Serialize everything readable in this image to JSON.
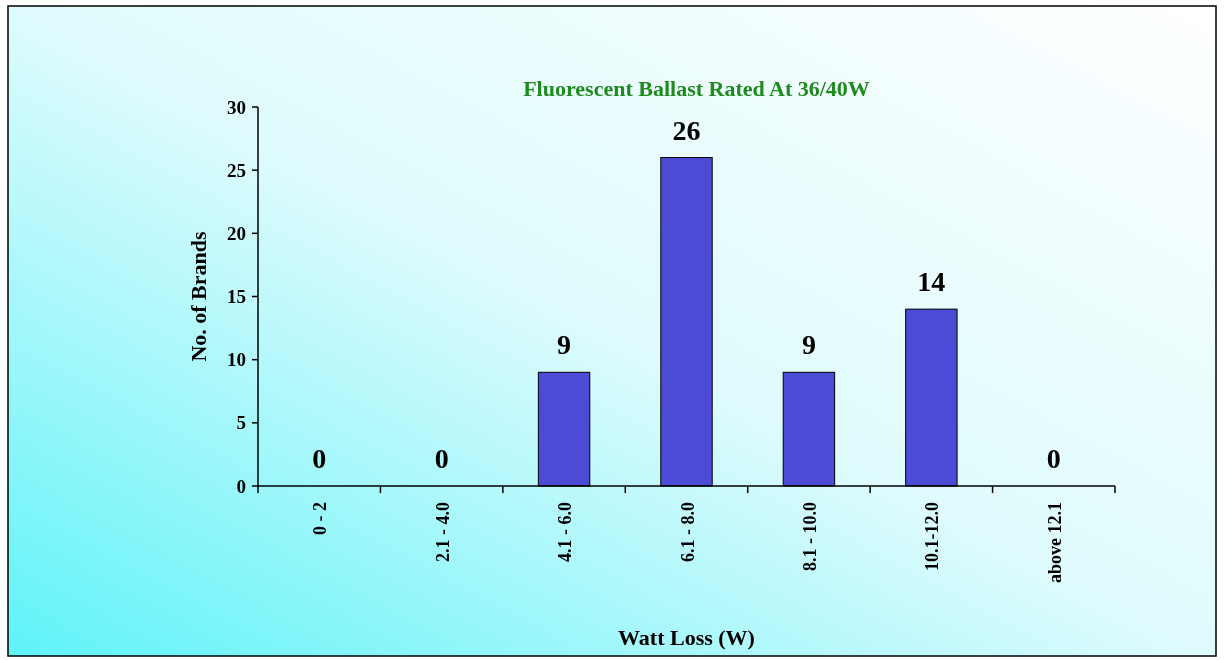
{
  "chart_data": {
    "type": "bar",
    "title": "Fluorescent Ballast Rated At 36/40W",
    "xlabel": "Watt Loss (W)",
    "ylabel": "No. of Brands",
    "categories": [
      "0 - 2",
      "2.1 - 4.0",
      "4.1 - 6.0",
      "6.1 - 8.0",
      "8.1 - 10.0",
      "10.1-12.0",
      "above 12.1"
    ],
    "values": [
      0,
      0,
      9,
      26,
      9,
      14,
      0
    ],
    "color": "#4b4bd6",
    "ylim": [
      0,
      30
    ],
    "yticks": [
      0,
      5,
      10,
      15,
      20,
      25,
      30
    ],
    "grid": false,
    "data_labels": true
  }
}
